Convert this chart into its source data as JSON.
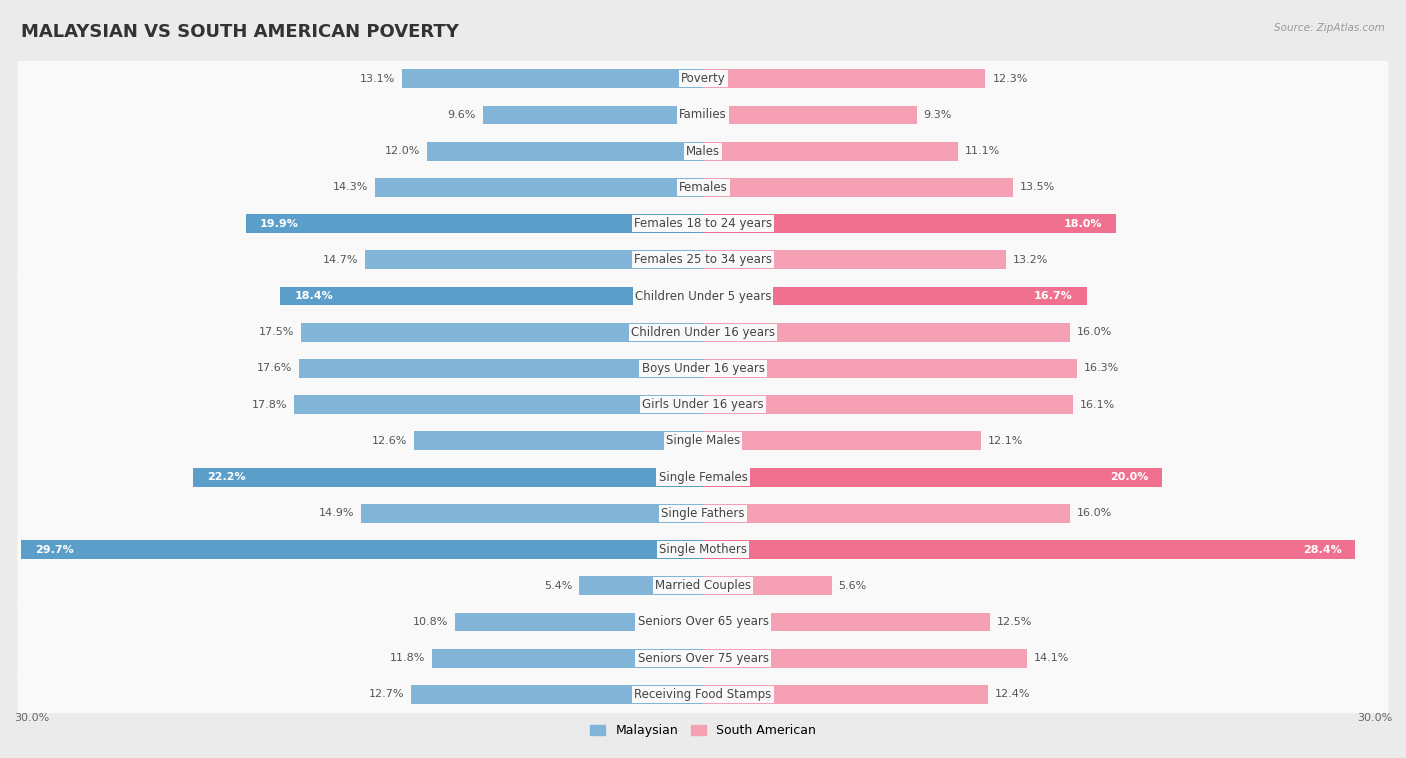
{
  "title": "MALAYSIAN VS SOUTH AMERICAN POVERTY",
  "source": "Source: ZipAtlas.com",
  "categories": [
    "Poverty",
    "Families",
    "Males",
    "Females",
    "Females 18 to 24 years",
    "Females 25 to 34 years",
    "Children Under 5 years",
    "Children Under 16 years",
    "Boys Under 16 years",
    "Girls Under 16 years",
    "Single Males",
    "Single Females",
    "Single Fathers",
    "Single Mothers",
    "Married Couples",
    "Seniors Over 65 years",
    "Seniors Over 75 years",
    "Receiving Food Stamps"
  ],
  "malaysian": [
    13.1,
    9.6,
    12.0,
    14.3,
    19.9,
    14.7,
    18.4,
    17.5,
    17.6,
    17.8,
    12.6,
    22.2,
    14.9,
    29.7,
    5.4,
    10.8,
    11.8,
    12.7
  ],
  "south_american": [
    12.3,
    9.3,
    11.1,
    13.5,
    18.0,
    13.2,
    16.7,
    16.0,
    16.3,
    16.1,
    12.1,
    20.0,
    16.0,
    28.4,
    5.6,
    12.5,
    14.1,
    12.4
  ],
  "malaysian_color": "#82B4D8",
  "south_american_color": "#F5A0B5",
  "malaysian_highlight_color": "#5B9EC9",
  "south_american_highlight_color": "#F07090",
  "highlight_rows": [
    4,
    6,
    11,
    13
  ],
  "background_color": "#ebebeb",
  "row_background": "#f9f9f9",
  "axis_max": 30.0,
  "legend_labels": [
    "Malaysian",
    "South American"
  ],
  "title_fontsize": 13,
  "label_fontsize": 8.5,
  "value_fontsize": 8.0
}
